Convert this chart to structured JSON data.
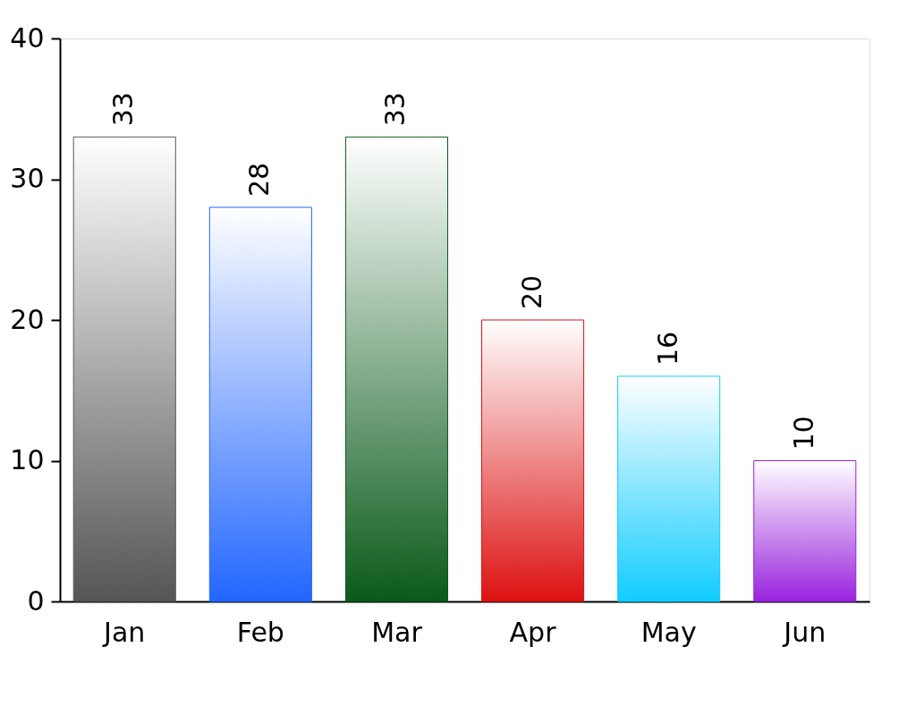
{
  "chart_data": {
    "type": "bar",
    "categories": [
      "Jan",
      "Feb",
      "Mar",
      "Apr",
      "May",
      "Jun"
    ],
    "values": [
      33,
      28,
      33,
      20,
      16,
      10
    ],
    "colors": [
      "#555555",
      "#2266ff",
      "#0a5a1a",
      "#dd1111",
      "#11ccff",
      "#9922dd"
    ],
    "ylim": [
      0,
      40
    ],
    "yticks": [
      0,
      10,
      20,
      30,
      40
    ],
    "grid": false,
    "data_labels": true
  }
}
